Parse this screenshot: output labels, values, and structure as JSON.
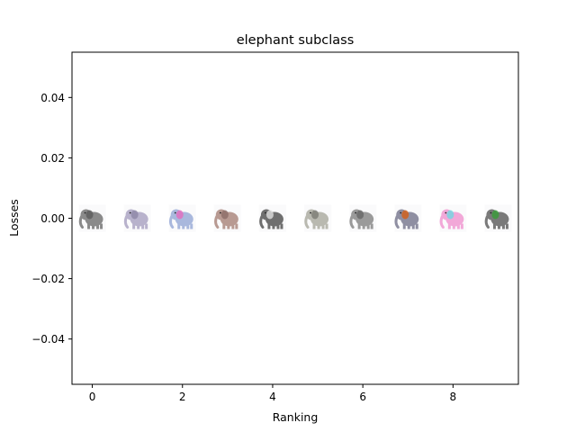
{
  "chart_data": {
    "type": "scatter",
    "title": "elephant subclass",
    "xlabel": "Ranking",
    "ylabel": "Losses",
    "xlim": [
      -0.45,
      9.45
    ],
    "ylim": [
      -0.055,
      0.055
    ],
    "xticks": [
      0,
      2,
      4,
      6,
      8
    ],
    "xtick_labels": [
      "0",
      "2",
      "4",
      "6",
      "8"
    ],
    "yticks": [
      -0.04,
      -0.02,
      0.0,
      0.02,
      0.04
    ],
    "ytick_labels": [
      "−0.04",
      "−0.02",
      "0.00",
      "0.02",
      "0.04"
    ],
    "grid": false,
    "x": [
      0,
      1,
      2,
      3,
      4,
      5,
      6,
      7,
      8,
      9
    ],
    "y": [
      0,
      0,
      0,
      0,
      0,
      0,
      0,
      0,
      0,
      0
    ],
    "markers": [
      {
        "icon": "elephant-icon",
        "body": "#8a8a8a",
        "accent": "#5e5e5e"
      },
      {
        "icon": "elephant-icon",
        "body": "#b8b2cc",
        "accent": "#8f88a8"
      },
      {
        "icon": "elephant-icon",
        "body": "#a9b8dd",
        "accent": "#e070c0"
      },
      {
        "icon": "elephant-icon",
        "body": "#b89a92",
        "accent": "#8e706a"
      },
      {
        "icon": "elephant-icon",
        "body": "#6f6f6f",
        "accent": "#d8d8d8"
      },
      {
        "icon": "elephant-icon",
        "body": "#b9b9b0",
        "accent": "#7f7f78"
      },
      {
        "icon": "elephant-icon",
        "body": "#9a9a9a",
        "accent": "#6a6a6a"
      },
      {
        "icon": "elephant-icon",
        "body": "#8f8fa2",
        "accent": "#d0621f"
      },
      {
        "icon": "elephant-icon",
        "body": "#f2a8d8",
        "accent": "#7ad4e0"
      },
      {
        "icon": "elephant-icon",
        "body": "#7a7a7a",
        "accent": "#3c9a3c"
      }
    ]
  }
}
